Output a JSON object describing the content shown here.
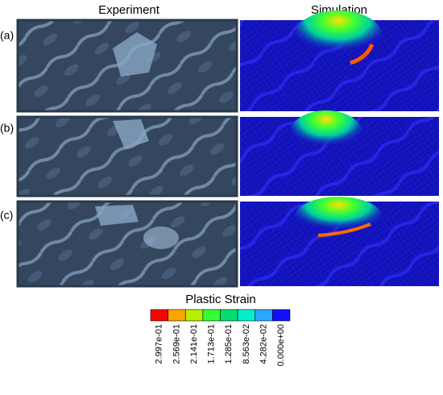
{
  "header": {
    "columns": [
      "Experiment",
      "Simulation"
    ]
  },
  "rows": [
    "(a)",
    "(b)",
    "(c)"
  ],
  "legend": {
    "title": "Plastic Strain",
    "entries": [
      {
        "label": "2.997e-01",
        "color": "#ff0000"
      },
      {
        "label": "2.569e-01",
        "color": "#ffa500"
      },
      {
        "label": "2.141e-01",
        "color": "#b8f000"
      },
      {
        "label": "1.713e-01",
        "color": "#33ff33"
      },
      {
        "label": "1.285e-01",
        "color": "#00e070"
      },
      {
        "label": "8.563e-02",
        "color": "#00f0d0"
      },
      {
        "label": "4.282e-02",
        "color": "#28a8ff"
      },
      {
        "label": "0.000e+00",
        "color": "#1010ff"
      }
    ]
  }
}
